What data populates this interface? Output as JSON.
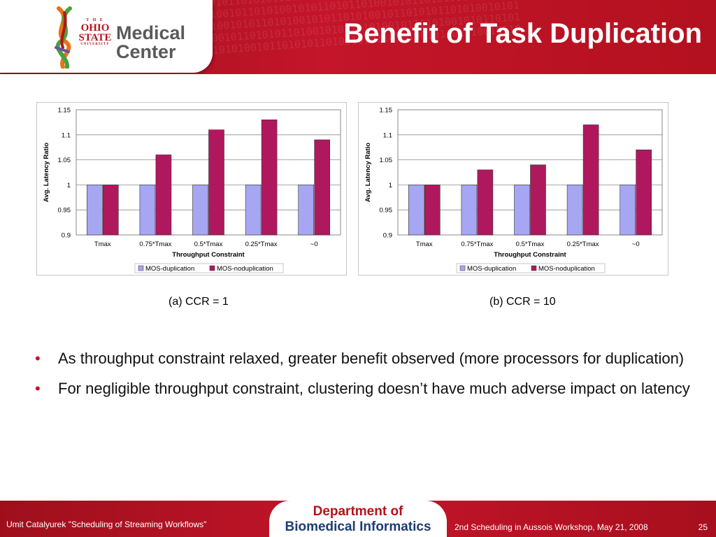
{
  "header": {
    "title": "Benefit of Task Duplication",
    "logo": {
      "the": "T H E",
      "ohio": "OHIO",
      "state": "STATE",
      "university": "UNIVERSITY",
      "line1": "Medical",
      "line2": "Center"
    },
    "binary_pattern": "0101011010100101010110101001011010100110101101010010101101010110100101011010100101\n1010010101101010010110101011010010101101010101101001010110101001010110101001010110\n0110101001011010110100101010110101001011010100101011010110100101011010100101101010\n1001011010100101101010011010101101001010110101001010110101001011010101101010010101\n0101101010010101101010010110101010010110101011010010101101010010110101001010110101\n1101001010110101001010110100101011010100101101010110100101011010100101101010010110"
  },
  "charts": [
    {
      "caption": "(a) CCR = 1"
    },
    {
      "caption": "(b) CCR = 10"
    }
  ],
  "chart_data": [
    {
      "type": "bar",
      "title": "",
      "xlabel": "Throughput Constraint",
      "ylabel": "Avg. Latency Ratio",
      "ylim": [
        0.9,
        1.15
      ],
      "yticks": [
        0.9,
        0.95,
        1,
        1.05,
        1.1,
        1.15
      ],
      "ytick_labels": [
        "0.9",
        "0.95",
        "1",
        "1.05",
        "1.1",
        "1.15"
      ],
      "categories": [
        "Tmax",
        "0.75*Tmax",
        "0.5*Tmax",
        "0.25*Tmax",
        "~0"
      ],
      "series": [
        {
          "name": "MOS-duplication",
          "color": "#a6a6f2",
          "values": [
            1,
            1,
            1,
            1,
            1
          ]
        },
        {
          "name": "MOS-noduplication",
          "color": "#b0185e",
          "values": [
            1,
            1.06,
            1.11,
            1.13,
            1.09
          ]
        }
      ],
      "grid": "horizontal",
      "legend": "bottom"
    },
    {
      "type": "bar",
      "title": "",
      "xlabel": "Throughput Constraint",
      "ylabel": "Avg. Latency Ratio",
      "ylim": [
        0.9,
        1.15
      ],
      "yticks": [
        0.9,
        0.95,
        1,
        1.05,
        1.1,
        1.15
      ],
      "ytick_labels": [
        "0.9",
        "0.95",
        "1",
        "1.05",
        "1.1",
        "1.15"
      ],
      "categories": [
        "Tmax",
        "0.75*Tmax",
        "0.5*Tmax",
        "0.25*Tmax",
        "~0"
      ],
      "series": [
        {
          "name": "MOS-duplication",
          "color": "#a6a6f2",
          "values": [
            1,
            1,
            1,
            1,
            1
          ]
        },
        {
          "name": "MOS-noduplication",
          "color": "#b0185e",
          "values": [
            1,
            1.03,
            1.04,
            1.12,
            1.07
          ]
        }
      ],
      "grid": "horizontal",
      "legend": "bottom"
    }
  ],
  "bullets": [
    {
      "marker": "•",
      "text": "As throughput constraint relaxed, greater benefit observed (more processors for duplication)"
    },
    {
      "marker": "•",
      "text": "For negligible throughput constraint, clustering doesn’t have much adverse impact on latency"
    }
  ],
  "footer": {
    "left": "Umit Catalyurek \"Scheduling of Streaming Workflows\"",
    "dept_line1": "Department of",
    "dept_line2": "Biomedical Informatics",
    "right": "2nd Scheduling in Aussois Workshop, May 21, 2008",
    "page": "25"
  },
  "colors": {
    "brand_red": "#c4152a",
    "brand_dark_red": "#9e0f1c",
    "dept_blue": "#1f3c73",
    "series_light": "#a6a6f2",
    "series_dark": "#b0185e"
  }
}
